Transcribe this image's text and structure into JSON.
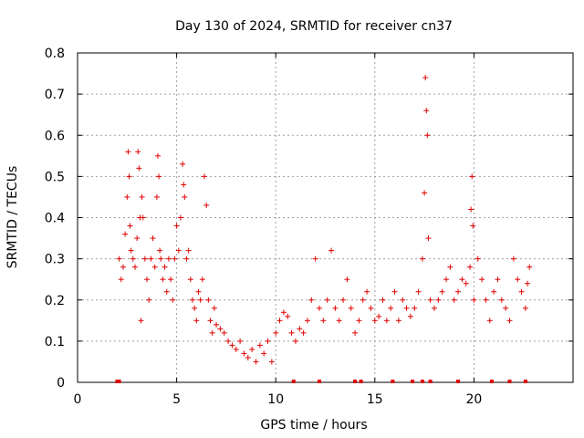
{
  "chart_data": {
    "type": "scatter",
    "title": "Day 130 of 2024, SRMTID for receiver cn37",
    "xlabel": "GPS time / hours",
    "ylabel": "SRMTID / TECUs",
    "xlim": [
      0,
      25
    ],
    "ylim": [
      0,
      0.8
    ],
    "xticks": [
      0,
      5,
      10,
      15,
      20
    ],
    "yticks": [
      0,
      0.1,
      0.2,
      0.3,
      0.4,
      0.5,
      0.6,
      0.7,
      0.8
    ],
    "grid": true,
    "marker": "+",
    "color": "#e00000",
    "series": [
      {
        "name": "SRMTID",
        "x": [
          2.1,
          2.2,
          2.3,
          2.4,
          2.5,
          2.55,
          2.6,
          2.65,
          2.7,
          2.8,
          2.9,
          3.0,
          3.05,
          3.1,
          3.15,
          3.2,
          3.25,
          3.3,
          3.4,
          3.5,
          3.6,
          3.7,
          3.8,
          3.9,
          4.0,
          4.05,
          4.1,
          4.15,
          4.2,
          4.3,
          4.4,
          4.5,
          4.6,
          4.7,
          4.8,
          4.9,
          5.0,
          5.1,
          5.2,
          5.3,
          5.35,
          5.4,
          5.5,
          5.6,
          5.7,
          5.8,
          5.9,
          6.0,
          6.1,
          6.2,
          6.3,
          6.4,
          6.5,
          6.6,
          6.7,
          6.8,
          6.9,
          7.0,
          7.2,
          7.4,
          7.6,
          7.8,
          8.0,
          8.2,
          8.4,
          8.6,
          8.8,
          9.0,
          9.2,
          9.4,
          9.6,
          9.8,
          10.0,
          10.2,
          10.4,
          10.6,
          10.8,
          11.0,
          11.2,
          11.4,
          11.6,
          11.8,
          12.0,
          12.2,
          12.4,
          12.6,
          12.8,
          13.0,
          13.2,
          13.4,
          13.6,
          13.8,
          14.0,
          14.2,
          14.4,
          14.6,
          14.8,
          15.0,
          15.2,
          15.4,
          15.6,
          15.8,
          16.0,
          16.2,
          16.4,
          16.6,
          16.8,
          17.0,
          17.2,
          17.4,
          17.5,
          17.55,
          17.6,
          17.65,
          17.7,
          17.8,
          18.0,
          18.2,
          18.4,
          18.6,
          18.8,
          19.0,
          19.2,
          19.4,
          19.6,
          19.8,
          19.85,
          19.9,
          19.95,
          20.0,
          20.2,
          20.4,
          20.6,
          20.8,
          21.0,
          21.2,
          21.4,
          21.6,
          21.8,
          22.0,
          22.2,
          22.4,
          22.6,
          22.7,
          22.8
        ],
        "y": [
          0.3,
          0.25,
          0.28,
          0.36,
          0.45,
          0.56,
          0.5,
          0.38,
          0.32,
          0.3,
          0.28,
          0.35,
          0.56,
          0.52,
          0.4,
          0.15,
          0.45,
          0.4,
          0.3,
          0.25,
          0.2,
          0.3,
          0.35,
          0.28,
          0.45,
          0.55,
          0.5,
          0.32,
          0.3,
          0.25,
          0.28,
          0.22,
          0.3,
          0.25,
          0.2,
          0.3,
          0.38,
          0.32,
          0.4,
          0.53,
          0.48,
          0.45,
          0.3,
          0.32,
          0.25,
          0.2,
          0.18,
          0.15,
          0.22,
          0.2,
          0.25,
          0.5,
          0.43,
          0.2,
          0.15,
          0.12,
          0.18,
          0.14,
          0.13,
          0.12,
          0.1,
          0.09,
          0.08,
          0.1,
          0.07,
          0.06,
          0.08,
          0.05,
          0.09,
          0.07,
          0.1,
          0.05,
          0.12,
          0.15,
          0.17,
          0.16,
          0.12,
          0.1,
          0.13,
          0.12,
          0.15,
          0.2,
          0.3,
          0.18,
          0.15,
          0.2,
          0.32,
          0.18,
          0.15,
          0.2,
          0.25,
          0.18,
          0.12,
          0.15,
          0.2,
          0.22,
          0.18,
          0.15,
          0.16,
          0.2,
          0.15,
          0.18,
          0.22,
          0.15,
          0.2,
          0.18,
          0.16,
          0.18,
          0.22,
          0.3,
          0.46,
          0.74,
          0.66,
          0.6,
          0.35,
          0.2,
          0.18,
          0.2,
          0.22,
          0.25,
          0.28,
          0.2,
          0.22,
          0.25,
          0.24,
          0.28,
          0.42,
          0.5,
          0.38,
          0.2,
          0.3,
          0.25,
          0.2,
          0.15,
          0.22,
          0.25,
          0.2,
          0.18,
          0.15,
          0.3,
          0.25,
          0.22,
          0.18,
          0.24,
          0.28
        ]
      }
    ],
    "baseline_markers_x": [
      2.0,
      2.1,
      10.9,
      12.2,
      14.0,
      14.3,
      15.9,
      16.9,
      17.4,
      17.8,
      19.2,
      20.9,
      21.8,
      22.6
    ]
  }
}
